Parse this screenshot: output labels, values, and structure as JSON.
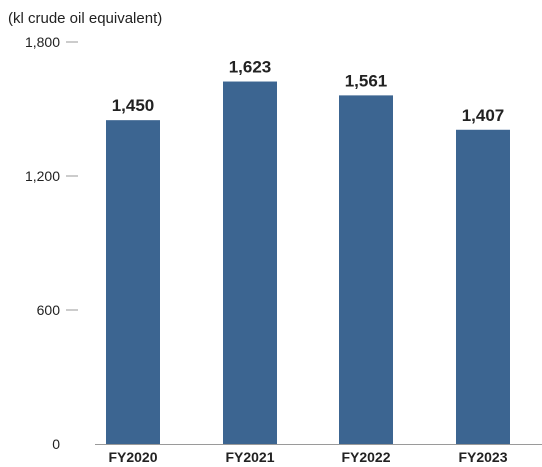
{
  "chart_data": {
    "type": "bar",
    "ylabel": "(kl crude oil equivalent)",
    "categories": [
      "FY2020",
      "FY2021",
      "FY2022",
      "FY2023"
    ],
    "values": [
      1450,
      1623,
      1561,
      1407
    ],
    "value_labels": [
      "1,450",
      "1,623",
      "1,561",
      "1,407"
    ],
    "y_ticks": [
      0,
      600,
      1200,
      1800
    ],
    "y_tick_labels": [
      "0",
      "600",
      "1,200",
      "1,800"
    ],
    "ylim": [
      0,
      1800
    ],
    "grid": false,
    "legend": "none",
    "bar_color": "#3c6591",
    "axis_color": "#9a9a9a"
  }
}
